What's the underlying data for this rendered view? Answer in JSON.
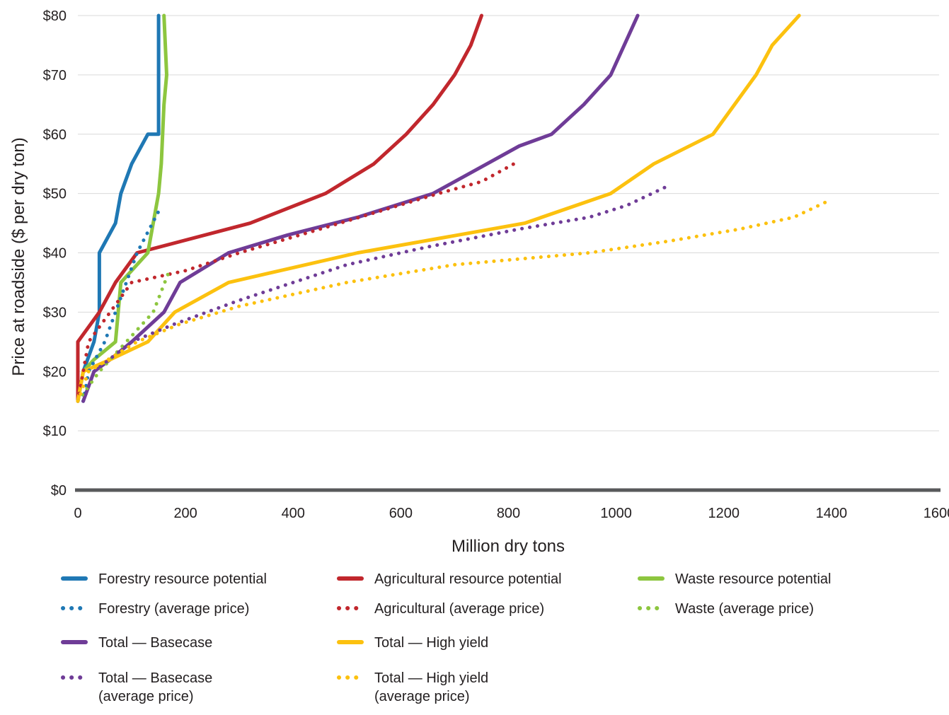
{
  "chart_data": {
    "type": "line",
    "xlabel": "Million dry tons",
    "ylabel": "Price at roadside ($ per dry ton)",
    "xlim": [
      0,
      1600
    ],
    "ylim": [
      0,
      80
    ],
    "x_ticks": [
      "0",
      "200",
      "400",
      "600",
      "800",
      "1000",
      "1200",
      "1400",
      "1600"
    ],
    "y_ticks": [
      "$0",
      "$10",
      "$20",
      "$30",
      "$40",
      "$50",
      "$60",
      "$70",
      "$80"
    ],
    "grid": true,
    "legend_position": "bottom",
    "series": [
      {
        "name": "Forestry resource potential",
        "color": "#1f78b4",
        "style": "solid",
        "points": [
          [
            0,
            15
          ],
          [
            10,
            20
          ],
          [
            30,
            25
          ],
          [
            40,
            30
          ],
          [
            40,
            40
          ],
          [
            70,
            45
          ],
          [
            80,
            50
          ],
          [
            100,
            55
          ],
          [
            130,
            60
          ],
          [
            150,
            60
          ],
          [
            150,
            70
          ],
          [
            150,
            80
          ]
        ]
      },
      {
        "name": "Agricultural resource potential",
        "color": "#c1272d",
        "style": "solid",
        "points": [
          [
            0,
            25
          ],
          [
            0,
            15
          ],
          [
            0,
            25
          ],
          [
            40,
            30
          ],
          [
            70,
            35
          ],
          [
            110,
            40
          ],
          [
            320,
            45
          ],
          [
            460,
            50
          ],
          [
            550,
            55
          ],
          [
            610,
            60
          ],
          [
            660,
            65
          ],
          [
            700,
            70
          ],
          [
            730,
            75
          ],
          [
            750,
            80
          ]
        ]
      },
      {
        "name": "Waste resource potential",
        "color": "#8dc63f",
        "style": "solid",
        "points": [
          [
            0,
            15
          ],
          [
            10,
            20
          ],
          [
            30,
            22
          ],
          [
            70,
            25
          ],
          [
            80,
            35
          ],
          [
            130,
            40
          ],
          [
            150,
            50
          ],
          [
            155,
            55
          ],
          [
            160,
            65
          ],
          [
            165,
            70
          ],
          [
            160,
            80
          ]
        ]
      },
      {
        "name": "Forestry (average price)",
        "color": "#1f78b4",
        "style": "dotted",
        "points": [
          [
            10,
            15
          ],
          [
            20,
            20
          ],
          [
            50,
            25
          ],
          [
            70,
            30
          ],
          [
            90,
            35
          ],
          [
            110,
            40
          ],
          [
            150,
            47
          ]
        ]
      },
      {
        "name": "Agricultural (average price)",
        "color": "#c1272d",
        "style": "dotted",
        "points": [
          [
            0,
            15
          ],
          [
            20,
            25
          ],
          [
            60,
            30
          ],
          [
            100,
            35
          ],
          [
            200,
            37
          ],
          [
            300,
            40
          ],
          [
            450,
            44
          ],
          [
            560,
            47
          ],
          [
            670,
            50
          ],
          [
            750,
            52
          ],
          [
            810,
            55
          ]
        ]
      },
      {
        "name": "Waste (average price)",
        "color": "#8dc63f",
        "style": "dotted",
        "points": [
          [
            0,
            15
          ],
          [
            40,
            20
          ],
          [
            90,
            25
          ],
          [
            140,
            30
          ],
          [
            170,
            37
          ]
        ]
      },
      {
        "name": "Total — Basecase",
        "color": "#6f3c97",
        "style": "solid",
        "points": [
          [
            10,
            15
          ],
          [
            30,
            20
          ],
          [
            60,
            22
          ],
          [
            100,
            25
          ],
          [
            160,
            30
          ],
          [
            190,
            35
          ],
          [
            280,
            40
          ],
          [
            390,
            43
          ],
          [
            520,
            46
          ],
          [
            660,
            50
          ],
          [
            760,
            55
          ],
          [
            820,
            58
          ],
          [
            880,
            60
          ],
          [
            940,
            65
          ],
          [
            990,
            70
          ],
          [
            1040,
            80
          ]
        ]
      },
      {
        "name": "Total — High yield",
        "color": "#fcc10f",
        "style": "solid",
        "points": [
          [
            0,
            15
          ],
          [
            10,
            20
          ],
          [
            60,
            22
          ],
          [
            130,
            25
          ],
          [
            180,
            30
          ],
          [
            280,
            35
          ],
          [
            520,
            40
          ],
          [
            830,
            45
          ],
          [
            990,
            50
          ],
          [
            1070,
            55
          ],
          [
            1180,
            60
          ],
          [
            1260,
            70
          ],
          [
            1290,
            75
          ],
          [
            1340,
            80
          ]
        ]
      },
      {
        "name": "Total — Basecase (average price)",
        "color": "#6f3c97",
        "style": "dotted",
        "points": [
          [
            10,
            15
          ],
          [
            30,
            20
          ],
          [
            100,
            25
          ],
          [
            180,
            28
          ],
          [
            300,
            32
          ],
          [
            500,
            38
          ],
          [
            650,
            41
          ],
          [
            820,
            44
          ],
          [
            950,
            46
          ],
          [
            1020,
            48
          ],
          [
            1090,
            51
          ]
        ]
      },
      {
        "name": "Total — High yield (average price)",
        "color": "#fcc10f",
        "style": "dotted",
        "points": [
          [
            0,
            15
          ],
          [
            20,
            20
          ],
          [
            110,
            25
          ],
          [
            190,
            28
          ],
          [
            300,
            31
          ],
          [
            500,
            35
          ],
          [
            700,
            38
          ],
          [
            950,
            40
          ],
          [
            1100,
            42
          ],
          [
            1230,
            44
          ],
          [
            1330,
            46
          ],
          [
            1400,
            49
          ]
        ]
      }
    ]
  },
  "legend": [
    {
      "label": "Forestry resource potential",
      "color": "#1f78b4",
      "style": "solid"
    },
    {
      "label": "Agricultural resource potential",
      "color": "#c1272d",
      "style": "solid"
    },
    {
      "label": "Waste resource potential",
      "color": "#8dc63f",
      "style": "solid"
    },
    {
      "label": "Forestry (average price)",
      "color": "#1f78b4",
      "style": "dotted"
    },
    {
      "label": "Agricultural (average price)",
      "color": "#c1272d",
      "style": "dotted"
    },
    {
      "label": "Waste (average price)",
      "color": "#8dc63f",
      "style": "dotted"
    },
    {
      "label": "Total — Basecase",
      "color": "#6f3c97",
      "style": "solid"
    },
    {
      "label": "Total — High yield",
      "color": "#fcc10f",
      "style": "solid"
    },
    {
      "label": "Total — Basecase\n(average price)",
      "color": "#6f3c97",
      "style": "dotted"
    },
    {
      "label": "Total — High yield\n(average price)",
      "color": "#fcc10f",
      "style": "dotted"
    }
  ]
}
